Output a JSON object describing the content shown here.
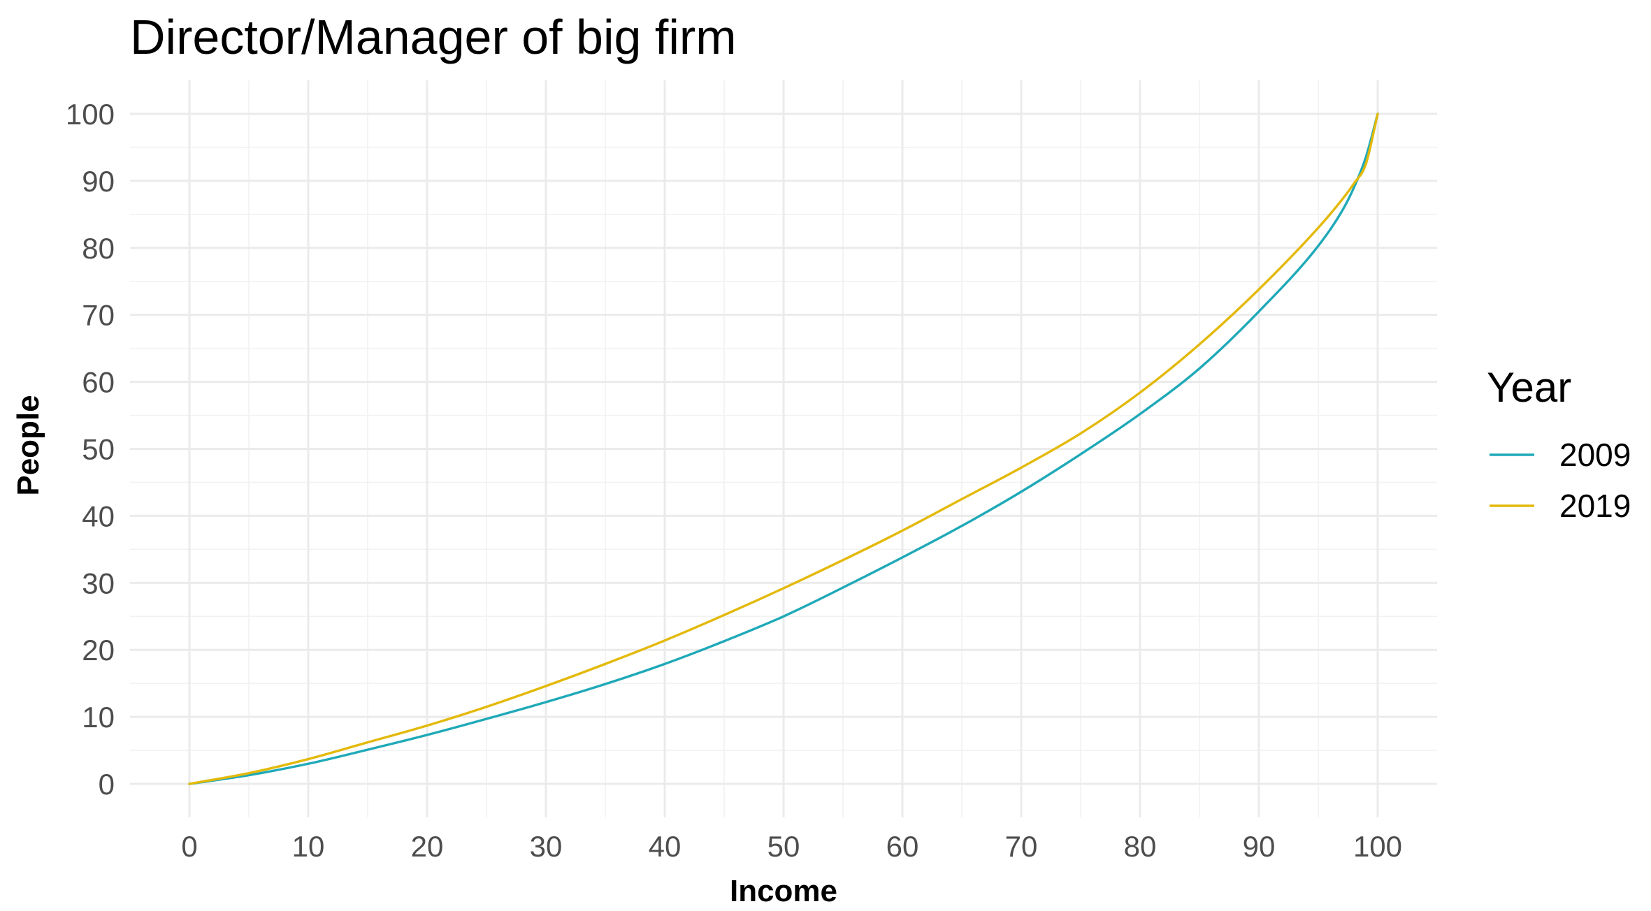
{
  "chart_data": {
    "type": "line",
    "title": "Director/Manager of big firm",
    "xlabel": "Income",
    "ylabel": "People",
    "xlim": [
      -5,
      105
    ],
    "ylim": [
      -5,
      105
    ],
    "x_ticks": [
      0,
      10,
      20,
      30,
      40,
      50,
      60,
      70,
      80,
      90,
      100
    ],
    "y_ticks": [
      0,
      10,
      20,
      30,
      40,
      50,
      60,
      70,
      80,
      90,
      100
    ],
    "grid": true,
    "legend": {
      "title": "Year",
      "position": "right"
    },
    "x": [
      0,
      5,
      10,
      15,
      20,
      25,
      30,
      35,
      40,
      45,
      50,
      55,
      60,
      65,
      70,
      75,
      80,
      85,
      90,
      95,
      97,
      98,
      99,
      100
    ],
    "series": [
      {
        "name": "2009",
        "color": "#1fa9b8",
        "values": [
          0,
          1.3,
          3.0,
          5.1,
          7.3,
          9.7,
          12.2,
          14.9,
          17.9,
          21.3,
          25.0,
          29.3,
          33.8,
          38.5,
          43.6,
          49.2,
          55.2,
          62.0,
          70.5,
          80.3,
          85.5,
          89.0,
          93.5,
          100
        ]
      },
      {
        "name": "2019",
        "color": "#e3b90a",
        "values": [
          0,
          1.6,
          3.7,
          6.2,
          8.7,
          11.5,
          14.6,
          17.9,
          21.4,
          25.2,
          29.2,
          33.4,
          37.8,
          42.5,
          47.2,
          52.3,
          58.4,
          65.6,
          73.8,
          83.0,
          87.2,
          89.6,
          92.5,
          100
        ]
      }
    ]
  }
}
